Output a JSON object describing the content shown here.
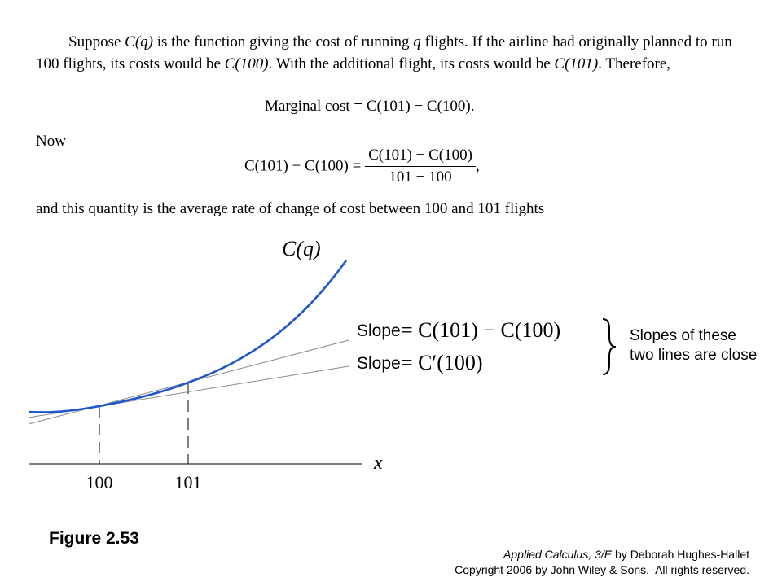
{
  "text": {
    "para1_suppose": "Suppose",
    "para1_Cq": "C(q)",
    "para1_mid": "is the function giving the cost of running",
    "para1_q": "q",
    "para1_rest": "flights. If the airline had originally planned to run 100 flights, its costs would be",
    "para1_C100": "C(100)",
    "para1_after": ". With the additional flight, its costs would be",
    "para1_C101": "C(101)",
    "para1_end": ". Therefore,",
    "eq1_label": "Marginal cost",
    "eq1_rhs": "= C(101) − C(100).",
    "now": "Now",
    "eq2_lhs": "C(101) − C(100) =",
    "eq2_num": "C(101) − C(100)",
    "eq2_den": "101 − 100",
    "eq2_comma": ",",
    "para3": "and this quantity is the average rate of change of cost between 100 and 101 flights"
  },
  "graph": {
    "curve_label": "C(q)",
    "x_axis_label": "x",
    "tick_100": "100",
    "tick_101": "101",
    "secant_label_word": "Slope",
    "secant_label_expr": "= C(101) − C(100)",
    "tangent_label_word": "Slope",
    "tangent_label_expr": "= C′(100)",
    "brace_note_line1": "Slopes of these",
    "brace_note_line2": "two lines are close",
    "curve_color": "#1f56c9",
    "line_color": "#8a8a8a"
  },
  "caption": {
    "figure": "Figure 2.53",
    "credit_title": "Applied Calculus, 3/E",
    "credit_rest": "by Deborah Hughes-Hallet",
    "copyright": "Copyright 2006 by John Wiley & Sons.  All rights reserved."
  }
}
